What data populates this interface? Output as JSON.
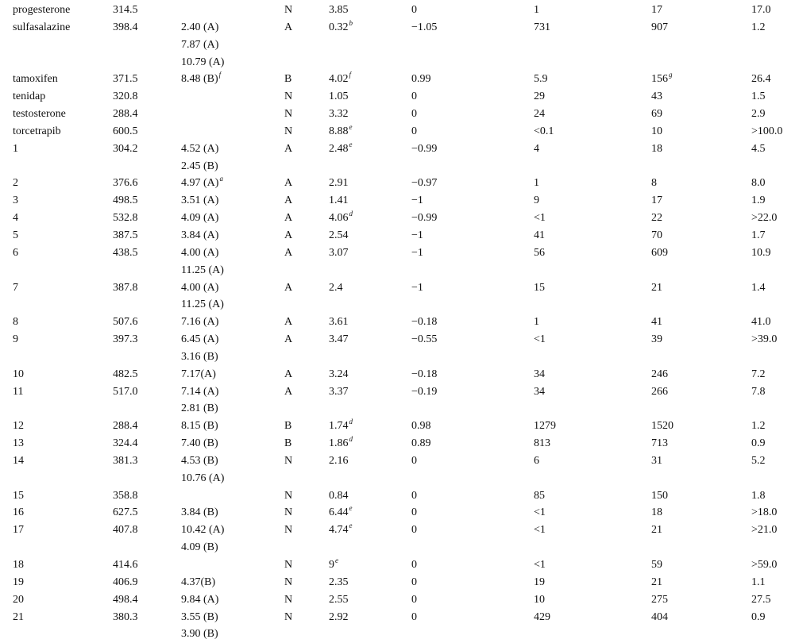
{
  "table": {
    "rows": [
      {
        "name": "progesterone",
        "mw": "314.5",
        "pka": [],
        "cls": "N",
        "logd": {
          "v": "3.85"
        },
        "c5": "0",
        "c6": "1",
        "c7": {
          "v": "17"
        },
        "c8": "17.0"
      },
      {
        "name": "sulfasalazine",
        "mw": "398.4",
        "pka": [
          {
            "v": "2.40 (A)"
          },
          {
            "v": "7.87 (A)"
          },
          {
            "v": "10.79 (A)"
          }
        ],
        "cls": "A",
        "logd": {
          "v": "0.32",
          "sup": "b"
        },
        "c5": "−1.05",
        "c6": "731",
        "c7": {
          "v": "907"
        },
        "c8": "1.2"
      },
      {
        "name": "tamoxifen",
        "mw": "371.5",
        "pka": [
          {
            "v": "8.48 (B)",
            "sup": "f"
          }
        ],
        "cls": "B",
        "logd": {
          "v": "4.02",
          "sup": "f"
        },
        "c5": "0.99",
        "c6": "5.9",
        "c7": {
          "v": "156",
          "sup": "g"
        },
        "c8": "26.4"
      },
      {
        "name": "tenidap",
        "mw": "320.8",
        "pka": [],
        "cls": "N",
        "logd": {
          "v": "1.05"
        },
        "c5": "0",
        "c6": "29",
        "c7": {
          "v": "43"
        },
        "c8": "1.5"
      },
      {
        "name": "testosterone",
        "mw": "288.4",
        "pka": [],
        "cls": "N",
        "logd": {
          "v": "3.32"
        },
        "c5": "0",
        "c6": "24",
        "c7": {
          "v": "69"
        },
        "c8": "2.9"
      },
      {
        "name": "torcetrapib",
        "mw": "600.5",
        "pka": [],
        "cls": "N",
        "logd": {
          "v": "8.88",
          "sup": "e"
        },
        "c5": "0",
        "c6": "<0.1",
        "c7": {
          "v": "10"
        },
        "c8": ">100.0"
      },
      {
        "name": "1",
        "mw": "304.2",
        "pka": [
          {
            "v": "4.52 (A)"
          },
          {
            "v": "2.45 (B)"
          }
        ],
        "cls": "A",
        "logd": {
          "v": "2.48",
          "sup": "e"
        },
        "c5": "−0.99",
        "c6": "4",
        "c7": {
          "v": "18"
        },
        "c8": "4.5"
      },
      {
        "name": "2",
        "mw": "376.6",
        "pka": [
          {
            "v": "4.97 (A)",
            "sup": "a"
          }
        ],
        "cls": "A",
        "logd": {
          "v": "2.91"
        },
        "c5": "−0.97",
        "c6": "1",
        "c7": {
          "v": "8"
        },
        "c8": "8.0"
      },
      {
        "name": "3",
        "mw": "498.5",
        "pka": [
          {
            "v": "3.51 (A)"
          }
        ],
        "cls": "A",
        "logd": {
          "v": "1.41"
        },
        "c5": "−1",
        "c6": "9",
        "c7": {
          "v": "17"
        },
        "c8": "1.9"
      },
      {
        "name": "4",
        "mw": "532.8",
        "pka": [
          {
            "v": "4.09 (A)"
          }
        ],
        "cls": "A",
        "logd": {
          "v": "4.06",
          "sup": "d"
        },
        "c5": "−0.99",
        "c6": "<1",
        "c7": {
          "v": "22"
        },
        "c8": ">22.0"
      },
      {
        "name": "5",
        "mw": "387.5",
        "pka": [
          {
            "v": "3.84 (A)"
          }
        ],
        "cls": "A",
        "logd": {
          "v": "2.54"
        },
        "c5": "−1",
        "c6": "41",
        "c7": {
          "v": "70"
        },
        "c8": "1.7"
      },
      {
        "name": "6",
        "mw": "438.5",
        "pka": [
          {
            "v": "4.00 (A)"
          },
          {
            "v": "11.25 (A)"
          }
        ],
        "cls": "A",
        "logd": {
          "v": "3.07"
        },
        "c5": "−1",
        "c6": "56",
        "c7": {
          "v": "609"
        },
        "c8": "10.9"
      },
      {
        "name": "7",
        "mw": "387.8",
        "pka": [
          {
            "v": "4.00 (A)"
          },
          {
            "v": "11.25 (A)"
          }
        ],
        "cls": "A",
        "logd": {
          "v": "2.4"
        },
        "c5": "−1",
        "c6": "15",
        "c7": {
          "v": "21"
        },
        "c8": "1.4"
      },
      {
        "name": "8",
        "mw": "507.6",
        "pka": [
          {
            "v": "7.16 (A)"
          }
        ],
        "cls": "A",
        "logd": {
          "v": "3.61"
        },
        "c5": "−0.18",
        "c6": "1",
        "c7": {
          "v": "41"
        },
        "c8": "41.0"
      },
      {
        "name": "9",
        "mw": "397.3",
        "pka": [
          {
            "v": "6.45 (A)"
          },
          {
            "v": "3.16 (B)"
          }
        ],
        "cls": "A",
        "logd": {
          "v": "3.47"
        },
        "c5": "−0.55",
        "c6": "<1",
        "c7": {
          "v": "39"
        },
        "c8": ">39.0"
      },
      {
        "name": "10",
        "mw": "482.5",
        "pka": [
          {
            "v": "7.17(A)"
          }
        ],
        "cls": "A",
        "logd": {
          "v": "3.24"
        },
        "c5": "−0.18",
        "c6": "34",
        "c7": {
          "v": "246"
        },
        "c8": "7.2"
      },
      {
        "name": "11",
        "mw": "517.0",
        "pka": [
          {
            "v": "7.14 (A)"
          },
          {
            "v": "2.81 (B)"
          }
        ],
        "cls": "A",
        "logd": {
          "v": "3.37"
        },
        "c5": "−0.19",
        "c6": "34",
        "c7": {
          "v": "266"
        },
        "c8": "7.8"
      },
      {
        "name": "12",
        "mw": "288.4",
        "pka": [
          {
            "v": "8.15 (B)"
          }
        ],
        "cls": "B",
        "logd": {
          "v": "1.74",
          "sup": "d"
        },
        "c5": "0.98",
        "c6": "1279",
        "c7": {
          "v": "1520"
        },
        "c8": "1.2"
      },
      {
        "name": "13",
        "mw": "324.4",
        "pka": [
          {
            "v": "7.40 (B)"
          }
        ],
        "cls": "B",
        "logd": {
          "v": "1.86",
          "sup": "d"
        },
        "c5": "0.89",
        "c6": "813",
        "c7": {
          "v": "713"
        },
        "c8": "0.9"
      },
      {
        "name": "14",
        "mw": "381.3",
        "pka": [
          {
            "v": "4.53 (B)"
          },
          {
            "v": "10.76 (A)"
          }
        ],
        "cls": "N",
        "logd": {
          "v": "2.16"
        },
        "c5": "0",
        "c6": "6",
        "c7": {
          "v": "31"
        },
        "c8": "5.2"
      },
      {
        "name": "15",
        "mw": "358.8",
        "pka": [],
        "cls": "N",
        "logd": {
          "v": "0.84"
        },
        "c5": "0",
        "c6": "85",
        "c7": {
          "v": "150"
        },
        "c8": "1.8"
      },
      {
        "name": "16",
        "mw": "627.5",
        "pka": [
          {
            "v": "3.84 (B)"
          }
        ],
        "cls": "N",
        "logd": {
          "v": "6.44",
          "sup": "e"
        },
        "c5": "0",
        "c6": "<1",
        "c7": {
          "v": "18"
        },
        "c8": ">18.0"
      },
      {
        "name": "17",
        "mw": "407.8",
        "pka": [
          {
            "v": "10.42 (A)"
          },
          {
            "v": "4.09 (B)"
          }
        ],
        "cls": "N",
        "logd": {
          "v": "4.74",
          "sup": "e"
        },
        "c5": "0",
        "c6": "<1",
        "c7": {
          "v": "21"
        },
        "c8": ">21.0"
      },
      {
        "name": "18",
        "mw": "414.6",
        "pka": [],
        "cls": "N",
        "logd": {
          "v": "9",
          "sup": "e"
        },
        "c5": "0",
        "c6": "<1",
        "c7": {
          "v": "59"
        },
        "c8": ">59.0"
      },
      {
        "name": "19",
        "mw": "406.9",
        "pka": [
          {
            "v": "4.37(B)"
          }
        ],
        "cls": "N",
        "logd": {
          "v": "2.35"
        },
        "c5": "0",
        "c6": "19",
        "c7": {
          "v": "21"
        },
        "c8": "1.1"
      },
      {
        "name": "20",
        "mw": "498.4",
        "pka": [
          {
            "v": "9.84 (A)"
          }
        ],
        "cls": "N",
        "logd": {
          "v": "2.55"
        },
        "c5": "0",
        "c6": "10",
        "c7": {
          "v": "275"
        },
        "c8": "27.5"
      },
      {
        "name": "21",
        "mw": "380.3",
        "pka": [
          {
            "v": "3.55 (B)"
          },
          {
            "v": "3.90 (B)"
          }
        ],
        "cls": "N",
        "logd": {
          "v": "2.92"
        },
        "c5": "0",
        "c6": "429",
        "c7": {
          "v": "404"
        },
        "c8": "0.9"
      }
    ]
  }
}
